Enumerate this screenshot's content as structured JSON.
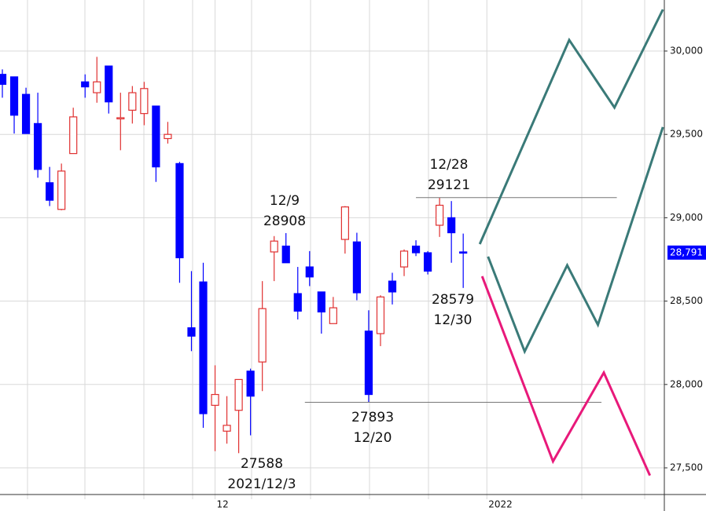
{
  "chart_data": {
    "type": "candlestick",
    "up_color": "#e03030",
    "down_color": "#0000ff",
    "open": [
      29860,
      29845,
      29740,
      29565,
      29210,
      29050,
      29385,
      29815,
      29750,
      29910,
      29595,
      29645,
      29625,
      29670,
      29475,
      29325,
      28340,
      28615,
      27875,
      27720,
      27845,
      28080,
      28135,
      28795,
      28830,
      28545,
      28705,
      28555,
      28365,
      28870,
      28855,
      28320,
      28305,
      28620,
      28705,
      28830,
      28790,
      28955,
      29000,
      28795
    ],
    "high": [
      29890,
      29845,
      29780,
      29750,
      29305,
      29325,
      29660,
      29860,
      29965,
      29910,
      29750,
      29790,
      29815,
      29670,
      29575,
      29335,
      28680,
      28730,
      28115,
      27930,
      28030,
      28095,
      28620,
      28890,
      28908,
      28705,
      28800,
      28555,
      28525,
      29070,
      28910,
      28445,
      28535,
      28670,
      28810,
      28865,
      28800,
      29121,
      29100,
      28905
    ],
    "low": [
      29720,
      29505,
      29505,
      29240,
      29070,
      29045,
      29385,
      29720,
      29690,
      29625,
      29405,
      29565,
      29555,
      29215,
      29445,
      28610,
      28200,
      27740,
      27600,
      27645,
      27588,
      27695,
      27960,
      28620,
      28730,
      28390,
      28590,
      28305,
      28365,
      28785,
      28505,
      27893,
      28230,
      28480,
      28650,
      28770,
      28660,
      28885,
      28730,
      28579
    ],
    "close": [
      29800,
      29615,
      29505,
      29290,
      29105,
      29280,
      29605,
      29785,
      29815,
      29695,
      29600,
      29750,
      29775,
      29305,
      29500,
      28760,
      28290,
      27825,
      27940,
      27755,
      28030,
      27930,
      28455,
      28860,
      28730,
      28440,
      28645,
      28435,
      28460,
      29065,
      28550,
      27940,
      28525,
      28555,
      28800,
      28790,
      28680,
      29075,
      28910,
      28791
    ],
    "xlim": [
      -0.2,
      56.02
    ],
    "xticks": [
      {
        "value": 18,
        "label": "12"
      },
      {
        "value": 41,
        "label": "2022"
      }
    ],
    "ylim": [
      27340,
      30306
    ],
    "yticks": [
      {
        "value": 27500,
        "label": "27,500"
      },
      {
        "value": 28000,
        "label": "28,000"
      },
      {
        "value": 28500,
        "label": "28,500"
      },
      {
        "value": 29000,
        "label": "29,000"
      },
      {
        "value": 29500,
        "label": "29,500"
      },
      {
        "value": 30000,
        "label": "30,000"
      }
    ],
    "grid": true,
    "last_price": {
      "value": 28791,
      "label": "28,791"
    },
    "levels": [
      {
        "value": 29121,
        "x": [
          35,
          52
        ]
      },
      {
        "value": 27893,
        "x": [
          25.6,
          50.7
        ]
      }
    ],
    "series": [
      {
        "color": "#3a7a78",
        "x": [
          40.4,
          47.97,
          51.8,
          55.9
        ],
        "values": [
          28842,
          30066,
          29661,
          30249
        ]
      },
      {
        "color": "#3a7a78",
        "x": [
          41.1,
          44.2,
          47.8,
          50.4,
          55.9
        ],
        "values": [
          28767,
          28198,
          28715,
          28358,
          29544
        ]
      },
      {
        "color": "#e8197a",
        "x": [
          40.6,
          46.6,
          50.9,
          54.8
        ],
        "values": [
          28649,
          27539,
          28071,
          27454
        ]
      }
    ],
    "annotations": [
      {
        "lines": [
          "12/28",
          "29121"
        ]
      },
      {
        "lines": [
          "12/9",
          "28908"
        ]
      },
      {
        "lines": [
          "28579",
          "12/30"
        ]
      },
      {
        "lines": [
          "27893",
          "12/20"
        ]
      },
      {
        "lines": [
          "27588",
          "2021/12/3"
        ]
      }
    ]
  }
}
